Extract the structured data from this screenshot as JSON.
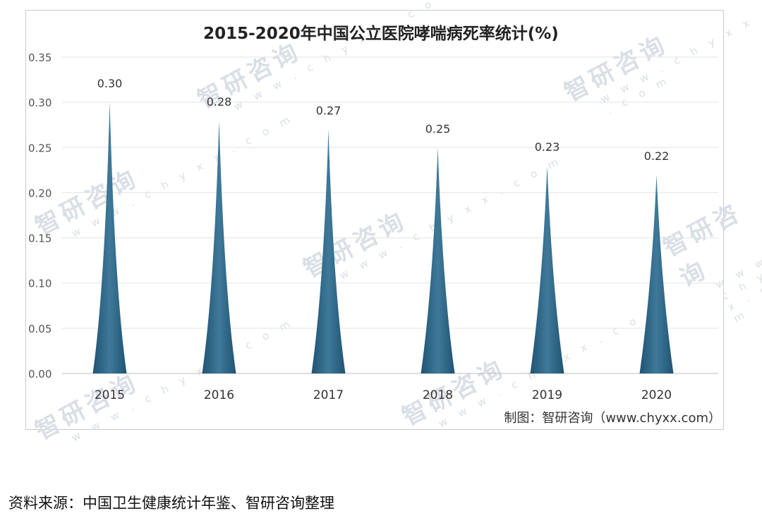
{
  "chart_data": {
    "type": "bar",
    "title": "2015-2020年中国公立医院哮喘病死率统计(%)",
    "categories": [
      "2015",
      "2016",
      "2017",
      "2018",
      "2019",
      "2020"
    ],
    "values": [
      0.3,
      0.28,
      0.27,
      0.25,
      0.23,
      0.22
    ],
    "data_labels": [
      "0.30",
      "0.28",
      "0.27",
      "0.25",
      "0.23",
      "0.22"
    ],
    "y_ticks": [
      "0.00",
      "0.05",
      "0.10",
      "0.15",
      "0.20",
      "0.25",
      "0.30",
      "0.35"
    ],
    "ylim": [
      0,
      0.35
    ],
    "grid": true,
    "bar_shape": "spike",
    "bar_color": "#1f5373",
    "bar_color_light": "#3f7999"
  },
  "watermark": {
    "brand": "智研咨询",
    "url": "w w w . c h y x x . c o m"
  },
  "credit": "制图：智研咨询（www.chyxx.com）",
  "source": "资料来源：中国卫生健康统计年鉴、智研咨询整理"
}
